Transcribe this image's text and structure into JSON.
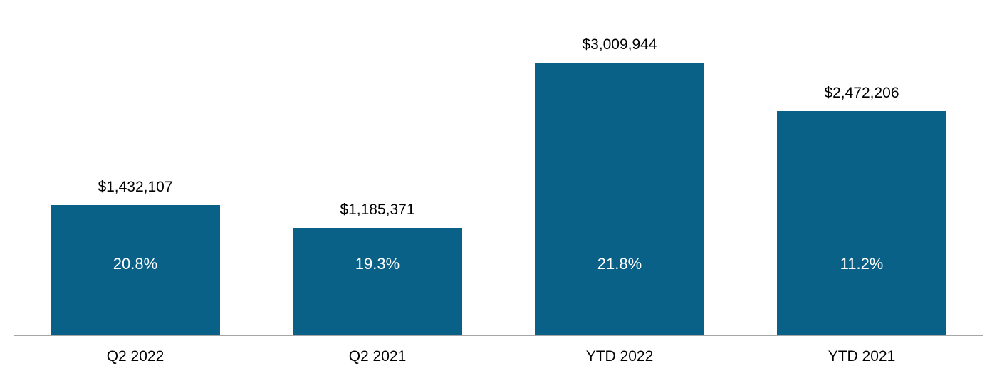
{
  "chart_data": {
    "type": "bar",
    "categories": [
      "Q2 2022",
      "Q2 2021",
      "YTD 2022",
      "YTD 2021"
    ],
    "values": [
      1432107,
      1185371,
      3009944,
      2472206
    ],
    "value_labels": [
      "$1,432,107",
      "$1,185,371",
      "$3,009,944",
      "$2,472,206"
    ],
    "percent_labels": [
      "20.8%",
      "19.3%",
      "21.8%",
      "11.2%"
    ],
    "title": "",
    "xlabel": "",
    "ylabel": "",
    "ylim": [
      0,
      3100000
    ],
    "grid": false,
    "legend": false,
    "bar_color": "#0a6187",
    "axis_line_color": "#a6a6a6",
    "value_label_color": "#000000",
    "percent_label_color": "#ffffff",
    "category_label_color": "#000000"
  }
}
